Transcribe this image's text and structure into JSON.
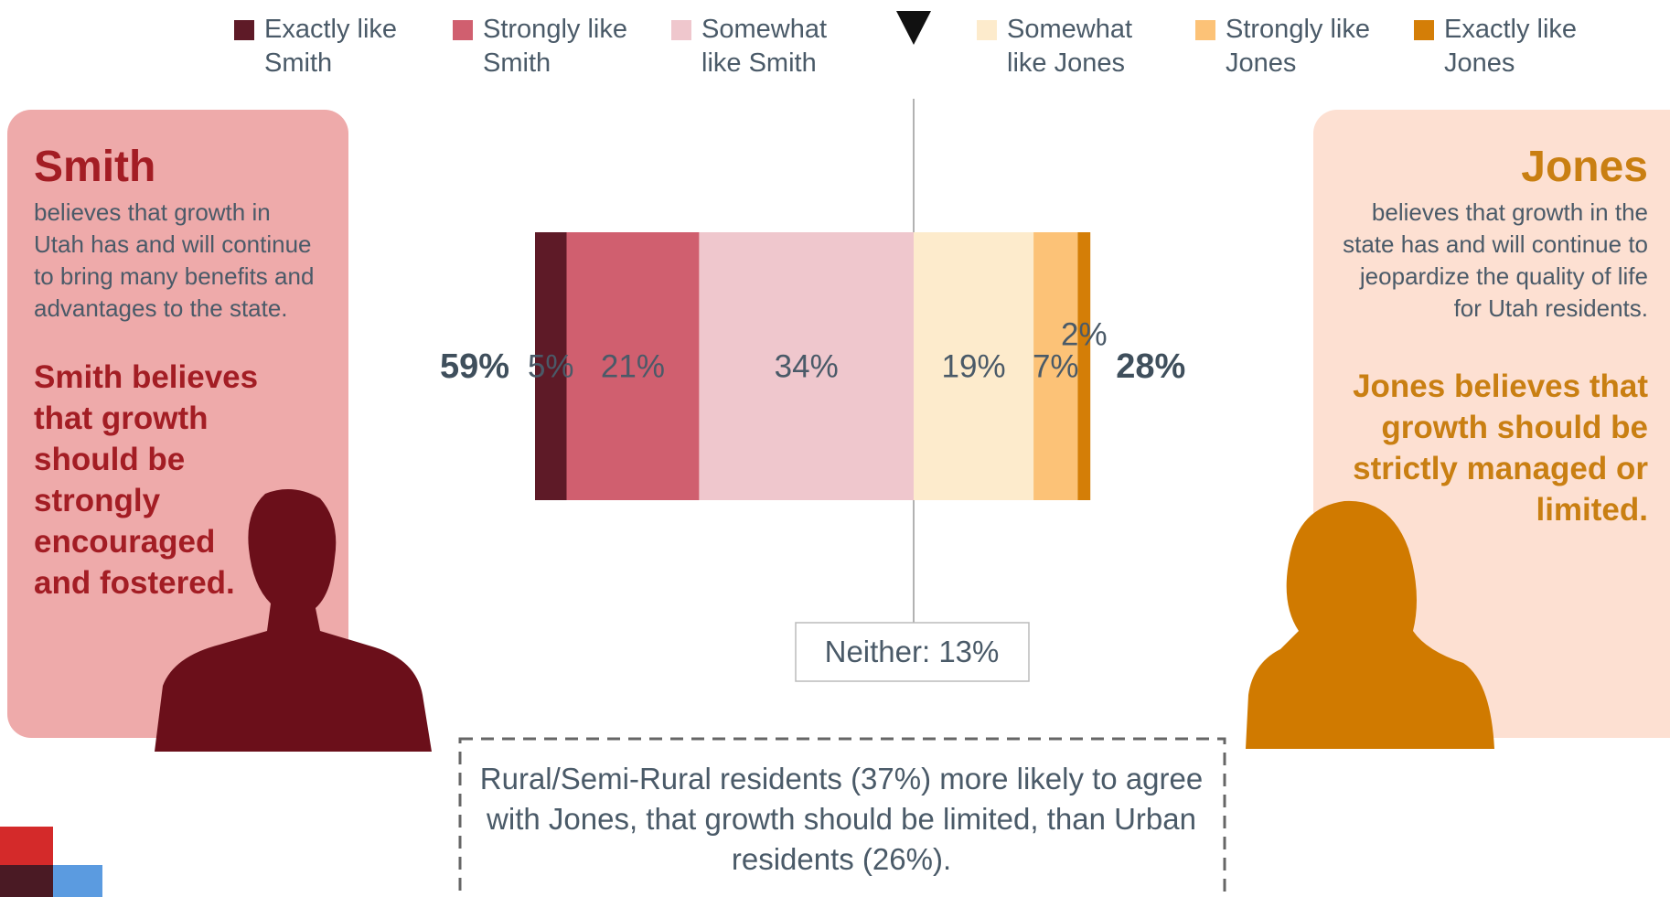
{
  "chart_data": {
    "type": "diverging_bar",
    "groups": [
      {
        "total_label": "59%",
        "series": [
          {
            "name": "Exactly like Smith",
            "color": "#5e1a27",
            "value": 5,
            "value_label": "5%"
          },
          {
            "name": "Strongly like Smith",
            "color": "#d05f6f",
            "value": 21,
            "value_label": "21%"
          },
          {
            "name": "Somewhat like Smith",
            "color": "#efc7cd",
            "value": 34,
            "value_label": "34%"
          }
        ]
      },
      {
        "total_label": "28%",
        "series": [
          {
            "name": "Somewhat like Jones",
            "color": "#fdebcc",
            "value": 19,
            "value_label": "19%"
          },
          {
            "name": "Strongly like Jones",
            "color": "#fcc277",
            "value": 7,
            "value_label": "7%"
          },
          {
            "name": "Exactly like Jones",
            "color": "#d47e07",
            "value": 2,
            "value_label": "2%"
          }
        ]
      }
    ],
    "neither_label": "Neither: 13%"
  },
  "smith": {
    "title": "Smith",
    "text": "believes that growth in Utah has and will continue to bring many benefits and advantages to the state.",
    "emphasis": "Smith believes that growth should be strongly encouraged and fostered."
  },
  "jones": {
    "title": "Jones",
    "text": "believes that growth in the state has and will continue to jeopardize the quality of life for Utah residents.",
    "emphasis": "Jones believes that growth should be strictly managed or limited."
  },
  "callout": "Rural/Semi-Rural residents (37%) more likely to agree with Jones, that growth should be limited, than Urban residents (26%)."
}
